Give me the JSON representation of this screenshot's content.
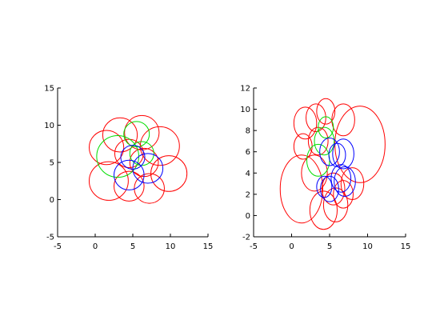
{
  "colors": {
    "red": "#ff0000",
    "green": "#00dd00",
    "blue": "#0000ff",
    "axis": "#000000"
  },
  "chart_data": [
    {
      "type": "scatter",
      "title": "",
      "xlabel": "",
      "ylabel": "",
      "xlim": [
        -5,
        15
      ],
      "ylim": [
        -5,
        15
      ],
      "xticks": [
        "-5",
        "0",
        "5",
        "10",
        "15"
      ],
      "yticks": [
        "-5",
        "0",
        "5",
        "10",
        "15"
      ],
      "grid": false,
      "ellipses": [
        {
          "cx": 1.8,
          "cy": 2.5,
          "rx": 2.6,
          "ry": 2.6,
          "color": "red"
        },
        {
          "cx": 1.5,
          "cy": 7.0,
          "rx": 2.3,
          "ry": 2.3,
          "color": "red"
        },
        {
          "cx": 3.3,
          "cy": 8.7,
          "rx": 2.3,
          "ry": 2.3,
          "color": "red"
        },
        {
          "cx": 6.2,
          "cy": 9.0,
          "rx": 2.3,
          "ry": 2.3,
          "color": "red"
        },
        {
          "cx": 8.6,
          "cy": 7.2,
          "rx": 2.6,
          "ry": 2.6,
          "color": "red"
        },
        {
          "cx": 9.8,
          "cy": 3.5,
          "rx": 2.4,
          "ry": 2.4,
          "color": "red"
        },
        {
          "cx": 7.2,
          "cy": 1.5,
          "rx": 2.0,
          "ry": 2.0,
          "color": "red"
        },
        {
          "cx": 4.5,
          "cy": 1.8,
          "rx": 2.0,
          "ry": 2.0,
          "color": "red"
        },
        {
          "cx": 4.5,
          "cy": 6.2,
          "rx": 1.9,
          "ry": 1.9,
          "color": "red"
        },
        {
          "cx": 6.5,
          "cy": 5.0,
          "rx": 1.9,
          "ry": 1.9,
          "color": "red"
        },
        {
          "cx": 5.5,
          "cy": 8.8,
          "rx": 1.7,
          "ry": 1.7,
          "color": "green"
        },
        {
          "cx": 3.0,
          "cy": 5.8,
          "rx": 2.8,
          "ry": 2.8,
          "color": "green"
        },
        {
          "cx": 6.2,
          "cy": 6.2,
          "rx": 1.6,
          "ry": 1.6,
          "color": "green"
        },
        {
          "cx": 4.5,
          "cy": 3.3,
          "rx": 2.0,
          "ry": 2.0,
          "color": "blue"
        },
        {
          "cx": 7.0,
          "cy": 4.2,
          "rx": 2.0,
          "ry": 2.0,
          "color": "blue"
        },
        {
          "cx": 5.0,
          "cy": 5.7,
          "rx": 1.6,
          "ry": 1.6,
          "color": "blue"
        }
      ]
    },
    {
      "type": "scatter",
      "title": "",
      "xlabel": "",
      "ylabel": "",
      "xlim": [
        -5,
        15
      ],
      "ylim": [
        -2,
        12
      ],
      "xticks": [
        "-5",
        "0",
        "5",
        "10",
        "15"
      ],
      "yticks": [
        "-2",
        "0",
        "2",
        "4",
        "6",
        "8",
        "10",
        "12"
      ],
      "grid": false,
      "ellipses": [
        {
          "cx": 1.3,
          "cy": 2.5,
          "rx": 2.8,
          "ry": 3.2,
          "color": "red"
        },
        {
          "cx": 9.0,
          "cy": 6.7,
          "rx": 3.3,
          "ry": 3.6,
          "color": "red"
        },
        {
          "cx": 1.8,
          "cy": 8.7,
          "rx": 1.5,
          "ry": 1.5,
          "color": "red"
        },
        {
          "cx": 1.5,
          "cy": 6.5,
          "rx": 1.2,
          "ry": 1.2,
          "color": "red"
        },
        {
          "cx": 3.2,
          "cy": 9.2,
          "rx": 1.3,
          "ry": 1.3,
          "color": "red"
        },
        {
          "cx": 4.5,
          "cy": 9.8,
          "rx": 1.2,
          "ry": 1.2,
          "color": "red"
        },
        {
          "cx": 6.8,
          "cy": 9.0,
          "rx": 1.5,
          "ry": 1.5,
          "color": "red"
        },
        {
          "cx": 8.0,
          "cy": 3.0,
          "rx": 1.5,
          "ry": 1.5,
          "color": "red"
        },
        {
          "cx": 4.2,
          "cy": 0.5,
          "rx": 1.8,
          "ry": 1.8,
          "color": "red"
        },
        {
          "cx": 5.8,
          "cy": 1.0,
          "rx": 1.6,
          "ry": 1.6,
          "color": "red"
        },
        {
          "cx": 3.0,
          "cy": 4.0,
          "rx": 1.7,
          "ry": 1.7,
          "color": "red"
        },
        {
          "cx": 5.5,
          "cy": 2.5,
          "rx": 1.5,
          "ry": 1.5,
          "color": "red"
        },
        {
          "cx": 3.5,
          "cy": 7.0,
          "rx": 1.3,
          "ry": 1.3,
          "color": "red"
        },
        {
          "cx": 6.8,
          "cy": 2.0,
          "rx": 1.3,
          "ry": 1.3,
          "color": "red"
        },
        {
          "cx": 4.5,
          "cy": 8.3,
          "rx": 1.0,
          "ry": 1.0,
          "color": "green"
        },
        {
          "cx": 3.5,
          "cy": 5.2,
          "rx": 1.5,
          "ry": 1.5,
          "color": "green"
        },
        {
          "cx": 4.3,
          "cy": 7.0,
          "rx": 1.3,
          "ry": 1.3,
          "color": "green"
        },
        {
          "cx": 5.0,
          "cy": 6.0,
          "rx": 1.3,
          "ry": 1.3,
          "color": "blue"
        },
        {
          "cx": 6.0,
          "cy": 5.7,
          "rx": 1.1,
          "ry": 1.1,
          "color": "blue"
        },
        {
          "cx": 6.8,
          "cy": 5.8,
          "rx": 1.4,
          "ry": 1.4,
          "color": "blue"
        },
        {
          "cx": 6.5,
          "cy": 3.5,
          "rx": 1.3,
          "ry": 1.3,
          "color": "blue"
        },
        {
          "cx": 7.0,
          "cy": 3.2,
          "rx": 1.4,
          "ry": 1.4,
          "color": "blue"
        },
        {
          "cx": 5.0,
          "cy": 2.5,
          "rx": 1.2,
          "ry": 1.2,
          "color": "blue"
        },
        {
          "cx": 4.3,
          "cy": 2.7,
          "rx": 1.0,
          "ry": 1.0,
          "color": "blue"
        }
      ]
    }
  ]
}
